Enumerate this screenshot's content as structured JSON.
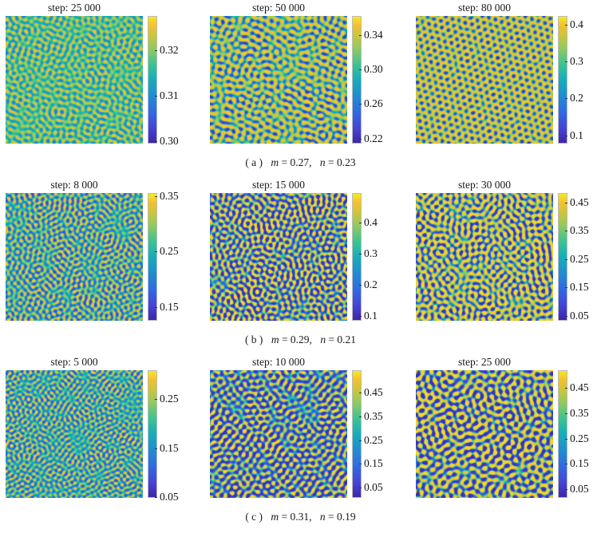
{
  "figure": {
    "background": "#ffffff"
  },
  "colors": {
    "parula_stops": [
      [
        0.0,
        "#3E26A8"
      ],
      [
        0.12,
        "#4545D8"
      ],
      [
        0.25,
        "#2F6CE4"
      ],
      [
        0.38,
        "#1E8FD0"
      ],
      [
        0.5,
        "#16ADBB"
      ],
      [
        0.62,
        "#3BC394"
      ],
      [
        0.75,
        "#91CA5F"
      ],
      [
        0.85,
        "#CCC53B"
      ],
      [
        0.93,
        "#F3C02F"
      ],
      [
        1.0,
        "#F8E821"
      ]
    ],
    "text": "#1a1a1a"
  },
  "groups": [
    {
      "caption_label": "( a )",
      "caption_m": "m = 0.27,",
      "caption_n": "n = 0.23"
    },
    {
      "caption_label": "( b )",
      "caption_m": "m = 0.29,",
      "caption_n": "n = 0.21"
    },
    {
      "caption_label": "( c )",
      "caption_m": "m = 0.31,",
      "caption_n": "n = 0.19"
    }
  ],
  "chart_data": [
    {
      "type": "heatmap",
      "group": "a",
      "title": "step: 25 000",
      "colorbar": {
        "vmin": 0.2995,
        "vmax": 0.3275,
        "tick_values": [
          0.3,
          0.31,
          0.32
        ],
        "tick_labels": [
          "0.30",
          "0.31",
          "0.32"
        ]
      },
      "pattern": "fine irregular spots, low contrast, green background with orange and teal speckles",
      "render": {
        "wavelength": 7.0,
        "waves": 40,
        "sharp": 0.75,
        "bias": 0.18,
        "tmin": 0.28,
        "tmax": 0.94,
        "seed": 101,
        "hex": false
      }
    },
    {
      "type": "heatmap",
      "group": "a",
      "title": "step: 50 000",
      "colorbar": {
        "vmin": 0.214,
        "vmax": 0.362,
        "tick_values": [
          0.22,
          0.26,
          0.3,
          0.34
        ],
        "tick_labels": [
          "0.22",
          "0.26",
          "0.30",
          "0.34"
        ]
      },
      "pattern": "yellow-green field with scattered dark blue dots",
      "render": {
        "wavelength": 8.0,
        "waves": 40,
        "sharp": 1.1,
        "bias": 0.5,
        "tmin": 0.05,
        "tmax": 0.95,
        "seed": 202,
        "hex": false
      }
    },
    {
      "type": "heatmap",
      "group": "a",
      "title": "step: 80 000",
      "colorbar": {
        "vmin": 0.078,
        "vmax": 0.423,
        "tick_values": [
          0.1,
          0.2,
          0.3,
          0.4
        ],
        "tick_labels": [
          "0.1",
          "0.2",
          "0.3",
          "0.4"
        ]
      },
      "pattern": "hexagonal lattice of blue dots on yellow-orange background",
      "render": {
        "wavelength": 7.5,
        "waves": 40,
        "sharp": 1.2,
        "bias": 0.5,
        "tmin": 0.04,
        "tmax": 0.96,
        "seed": 303,
        "hex": true,
        "noise_waves": 9,
        "noise_amp": 0.22
      }
    },
    {
      "type": "heatmap",
      "group": "b",
      "title": "step: 8 000",
      "colorbar": {
        "vmin": 0.125,
        "vmax": 0.356,
        "tick_values": [
          0.15,
          0.25,
          0.35
        ],
        "tick_labels": [
          "0.15",
          "0.25",
          "0.35"
        ]
      },
      "pattern": "green background with dense yellow speckles and dark blue dots",
      "render": {
        "wavelength": 6.5,
        "waves": 40,
        "sharp": 0.95,
        "bias": 0.12,
        "tmin": 0.1,
        "tmax": 0.95,
        "seed": 404,
        "hex": false
      }
    },
    {
      "type": "heatmap",
      "group": "b",
      "title": "step: 15 000",
      "colorbar": {
        "vmin": 0.084,
        "vmax": 0.495,
        "tick_values": [
          0.1,
          0.2,
          0.3,
          0.4
        ],
        "tick_labels": [
          "0.1",
          "0.2",
          "0.3",
          "0.4"
        ]
      },
      "pattern": "high-contrast labyrinthine yellow and blue pattern",
      "render": {
        "wavelength": 7.0,
        "waves": 40,
        "sharp": 1.8,
        "bias": 0.02,
        "tmin": 0.03,
        "tmax": 0.97,
        "seed": 505,
        "hex": false
      }
    },
    {
      "type": "heatmap",
      "group": "b",
      "title": "step: 30 000",
      "colorbar": {
        "vmin": 0.032,
        "vmax": 0.484,
        "tick_values": [
          0.05,
          0.15,
          0.25,
          0.35,
          0.45
        ],
        "tick_labels": [
          "0.05",
          "0.15",
          "0.25",
          "0.35",
          "0.45"
        ]
      },
      "pattern": "yellow-dominant labyrinth with blue dots and short stripes",
      "render": {
        "wavelength": 7.5,
        "waves": 40,
        "sharp": 1.7,
        "bias": 0.3,
        "tmin": 0.03,
        "tmax": 0.97,
        "seed": 606,
        "hex": false
      }
    },
    {
      "type": "heatmap",
      "group": "c",
      "title": "step: 5 000",
      "colorbar": {
        "vmin": 0.049,
        "vmax": 0.309,
        "tick_values": [
          0.05,
          0.15,
          0.25
        ],
        "tick_labels": [
          "0.05",
          "0.15",
          "0.25"
        ]
      },
      "pattern": "teal-green background with fine yellow speckles and blue dots",
      "render": {
        "wavelength": 6.0,
        "waves": 40,
        "sharp": 0.85,
        "bias": 0.0,
        "tmin": 0.12,
        "tmax": 0.97,
        "seed": 707,
        "hex": false
      }
    },
    {
      "type": "heatmap",
      "group": "c",
      "title": "step: 10 000",
      "colorbar": {
        "vmin": 0.007,
        "vmax": 0.544,
        "tick_values": [
          0.05,
          0.15,
          0.25,
          0.35,
          0.45
        ],
        "tick_labels": [
          "0.05",
          "0.15",
          "0.25",
          "0.35",
          "0.45"
        ]
      },
      "pattern": "labyrinthine pattern, blue slightly dominant over yellow worms",
      "render": {
        "wavelength": 7.5,
        "waves": 40,
        "sharp": 1.7,
        "bias": -0.08,
        "tmin": 0.03,
        "tmax": 0.97,
        "seed": 808,
        "hex": false
      }
    },
    {
      "type": "heatmap",
      "group": "c",
      "title": "step: 25 000",
      "colorbar": {
        "vmin": 0.015,
        "vmax": 0.52,
        "tick_values": [
          0.05,
          0.15,
          0.25,
          0.35,
          0.45
        ],
        "tick_labels": [
          "0.05",
          "0.15",
          "0.25",
          "0.35",
          "0.45"
        ]
      },
      "pattern": "coarse fingerprint-like labyrinth of yellow and blue stripes",
      "render": {
        "wavelength": 8.5,
        "waves": 40,
        "sharp": 2.0,
        "bias": 0.1,
        "tmin": 0.03,
        "tmax": 0.97,
        "seed": 909,
        "hex": false
      }
    }
  ]
}
